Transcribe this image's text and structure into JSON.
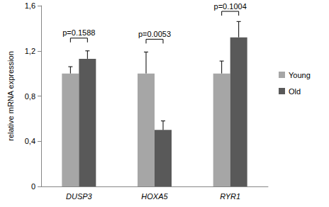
{
  "chart_data": {
    "type": "bar",
    "categories": [
      "DUSP3",
      "HOXA5",
      "RYR1"
    ],
    "series": [
      {
        "name": "Young",
        "color": "#a6a6a6",
        "values": [
          1,
          1,
          1
        ],
        "errors": [
          0.06,
          0.19,
          0.11
        ]
      },
      {
        "name": "Old",
        "color": "#595959",
        "values": [
          1.13,
          0.5,
          1.32
        ],
        "errors": [
          0.07,
          0.08,
          0.14
        ]
      }
    ],
    "y_label": "relative mRNA expression",
    "ylim": [
      0,
      1.6
    ],
    "yticks": [
      0,
      {
        "value": 0.4,
        "label": "0,4"
      },
      {
        "value": 0.8,
        "label": "0,8"
      },
      {
        "value": 1.2,
        "label": "1,2"
      },
      {
        "value": 1.6,
        "label": "1,6"
      }
    ],
    "grid": false,
    "legend": "right",
    "annotations": [
      {
        "category": "DUSP3",
        "text": "p=0.1588"
      },
      {
        "category": "HOXA5",
        "text": "p=0.0053"
      },
      {
        "category": "RYR1",
        "text": "p=0.1004"
      }
    ]
  }
}
